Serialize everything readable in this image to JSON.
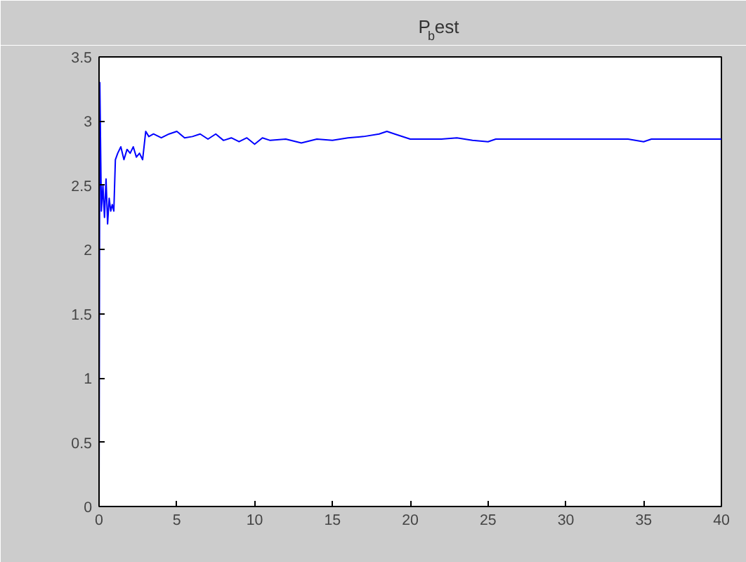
{
  "chart_data": {
    "type": "line",
    "title": "P$_{b}$est",
    "xlim": [
      0,
      40
    ],
    "ylim": [
      0,
      3.5
    ],
    "xticks": [
      0,
      5,
      10,
      15,
      20,
      25,
      30,
      35,
      40
    ],
    "yticks": [
      0,
      0.5,
      1,
      1.5,
      2,
      2.5,
      3,
      3.5
    ],
    "grid": false,
    "series": [
      {
        "color": "#0000ff",
        "x": [
          0,
          0.05,
          0.15,
          0.25,
          0.35,
          0.45,
          0.55,
          0.65,
          0.75,
          0.85,
          0.95,
          1.05,
          1.2,
          1.4,
          1.6,
          1.8,
          2.0,
          2.2,
          2.4,
          2.6,
          2.8,
          3.0,
          3.2,
          3.5,
          4.0,
          4.5,
          5.0,
          5.5,
          6.0,
          6.5,
          7.0,
          7.5,
          8.0,
          8.5,
          9.0,
          9.5,
          10.0,
          10.5,
          11.0,
          12.0,
          13.0,
          14.0,
          15.0,
          16.0,
          17.0,
          18.0,
          18.5,
          19.0,
          20.0,
          21.0,
          22.0,
          23.0,
          24.0,
          25.0,
          25.5,
          26.0,
          28.0,
          30.0,
          32.0,
          34.0,
          35.0,
          35.5,
          37.0,
          40.0
        ],
        "values": [
          0,
          3.3,
          2.3,
          2.5,
          2.25,
          2.55,
          2.2,
          2.4,
          2.3,
          2.35,
          2.3,
          2.7,
          2.75,
          2.8,
          2.7,
          2.78,
          2.75,
          2.8,
          2.72,
          2.75,
          2.7,
          2.92,
          2.88,
          2.9,
          2.87,
          2.9,
          2.92,
          2.87,
          2.88,
          2.9,
          2.86,
          2.9,
          2.85,
          2.87,
          2.84,
          2.87,
          2.82,
          2.87,
          2.85,
          2.86,
          2.83,
          2.86,
          2.85,
          2.87,
          2.88,
          2.9,
          2.92,
          2.9,
          2.86,
          2.86,
          2.86,
          2.87,
          2.85,
          2.84,
          2.86,
          2.86,
          2.86,
          2.86,
          2.86,
          2.86,
          2.84,
          2.86,
          2.86,
          2.86
        ]
      }
    ]
  }
}
